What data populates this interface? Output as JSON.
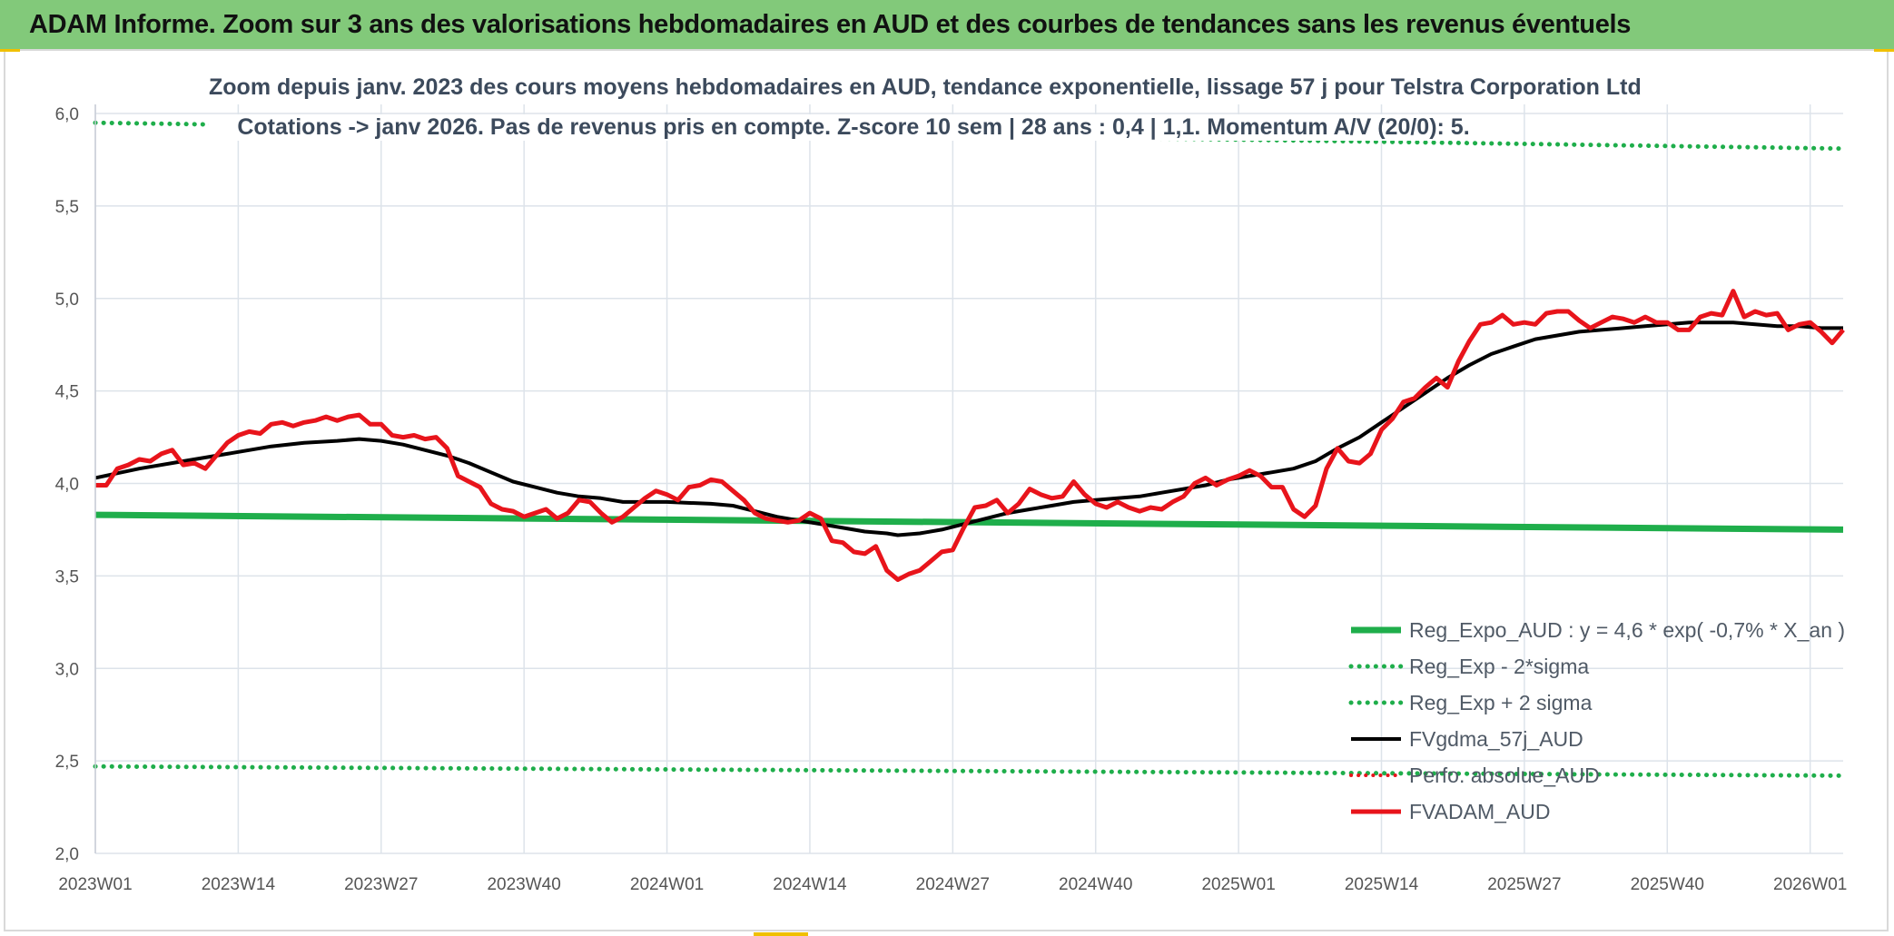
{
  "banner": {
    "title": "ADAM Informe. Zoom sur 3 ans des valorisations hebdomadaires en AUD et des courbes de tendances sans les revenus éventuels"
  },
  "colors": {
    "banner_bg": "#82c97a",
    "reg_expo": "#1fae4b",
    "sigma_bands": "#1fae4b",
    "fvgdma": "#000000",
    "fvadam": "#e8141b",
    "perfo": "#e8141b",
    "grid": "#dde3ea"
  },
  "chart_data": {
    "type": "line",
    "title": "Zoom depuis janv. 2023 des cours moyens hebdomadaires en AUD, tendance exponentielle, lissage 57 j pour Telstra Corporation Ltd",
    "subtitle": "Cotations -> janv 2026. Pas de revenus pris en compte. Z-score 10 sem | 28 ans : 0,4 | 1,1. Momentum A/V (20/0): 5.",
    "xlabel": "",
    "ylabel": "",
    "ylim": [
      2.0,
      6.0
    ],
    "y_ticks": [
      "2,0",
      "2,5",
      "3,0",
      "3,5",
      "4,0",
      "4,5",
      "5,0",
      "5,5",
      "6,0"
    ],
    "x_range_weeks": [
      0,
      159
    ],
    "x_ticks": [
      {
        "label": "2023W01",
        "week": 0
      },
      {
        "label": "2023W14",
        "week": 13
      },
      {
        "label": "2023W27",
        "week": 26
      },
      {
        "label": "2023W40",
        "week": 39
      },
      {
        "label": "2024W01",
        "week": 52
      },
      {
        "label": "2024W14",
        "week": 65
      },
      {
        "label": "2024W27",
        "week": 78
      },
      {
        "label": "2024W40",
        "week": 91
      },
      {
        "label": "2025W01",
        "week": 104
      },
      {
        "label": "2025W14",
        "week": 117
      },
      {
        "label": "2025W27",
        "week": 130
      },
      {
        "label": "2025W40",
        "week": 143
      },
      {
        "label": "2026W01",
        "week": 156
      }
    ],
    "series": [
      {
        "name": "Reg_Expo_AUD : y = 4,6 * exp( -0,7% *  X_an )",
        "key": "reg_expo",
        "style": "solid-thick",
        "points": [
          [
            0,
            3.83
          ],
          [
            40,
            3.81
          ],
          [
            80,
            3.79
          ],
          [
            120,
            3.77
          ],
          [
            159,
            3.75
          ]
        ]
      },
      {
        "name": "Reg_Exp - 2*sigma",
        "key": "reg_minus",
        "style": "dotted",
        "points": [
          [
            0,
            2.47
          ],
          [
            159,
            2.42
          ]
        ]
      },
      {
        "name": "Reg_Exp + 2 sigma",
        "key": "reg_plus",
        "style": "dotted",
        "points": [
          [
            0,
            5.95
          ],
          [
            159,
            5.81
          ]
        ]
      },
      {
        "name": "FVgdma_57j_AUD",
        "key": "fvgdma",
        "style": "solid",
        "points": [
          [
            0,
            4.03
          ],
          [
            4,
            4.08
          ],
          [
            8,
            4.12
          ],
          [
            12,
            4.16
          ],
          [
            16,
            4.2
          ],
          [
            19,
            4.22
          ],
          [
            22,
            4.23
          ],
          [
            24,
            4.24
          ],
          [
            26,
            4.23
          ],
          [
            28,
            4.21
          ],
          [
            30,
            4.18
          ],
          [
            32,
            4.15
          ],
          [
            34,
            4.11
          ],
          [
            36,
            4.06
          ],
          [
            38,
            4.01
          ],
          [
            40,
            3.98
          ],
          [
            42,
            3.95
          ],
          [
            44,
            3.93
          ],
          [
            46,
            3.92
          ],
          [
            48,
            3.9
          ],
          [
            52,
            3.9
          ],
          [
            56,
            3.89
          ],
          [
            58,
            3.88
          ],
          [
            60,
            3.85
          ],
          [
            62,
            3.82
          ],
          [
            64,
            3.8
          ],
          [
            66,
            3.78
          ],
          [
            68,
            3.76
          ],
          [
            70,
            3.74
          ],
          [
            72,
            3.73
          ],
          [
            73,
            3.72
          ],
          [
            75,
            3.73
          ],
          [
            77,
            3.75
          ],
          [
            79,
            3.78
          ],
          [
            81,
            3.81
          ],
          [
            83,
            3.84
          ],
          [
            85,
            3.86
          ],
          [
            87,
            3.88
          ],
          [
            89,
            3.9
          ],
          [
            91,
            3.91
          ],
          [
            93,
            3.92
          ],
          [
            95,
            3.93
          ],
          [
            97,
            3.95
          ],
          [
            99,
            3.97
          ],
          [
            101,
            3.99
          ],
          [
            103,
            4.02
          ],
          [
            105,
            4.04
          ],
          [
            107,
            4.06
          ],
          [
            109,
            4.08
          ],
          [
            111,
            4.12
          ],
          [
            113,
            4.19
          ],
          [
            115,
            4.25
          ],
          [
            117,
            4.33
          ],
          [
            119,
            4.41
          ],
          [
            121,
            4.49
          ],
          [
            123,
            4.57
          ],
          [
            125,
            4.64
          ],
          [
            127,
            4.7
          ],
          [
            129,
            4.74
          ],
          [
            131,
            4.78
          ],
          [
            133,
            4.8
          ],
          [
            135,
            4.82
          ],
          [
            137,
            4.83
          ],
          [
            139,
            4.84
          ],
          [
            141,
            4.85
          ],
          [
            143,
            4.86
          ],
          [
            145,
            4.87
          ],
          [
            147,
            4.87
          ],
          [
            149,
            4.87
          ],
          [
            151,
            4.86
          ],
          [
            153,
            4.85
          ],
          [
            155,
            4.85
          ],
          [
            157,
            4.84
          ],
          [
            159,
            4.84
          ]
        ]
      },
      {
        "name": "Perfo. absolue_AUD",
        "key": "perfo",
        "style": "dotted-red",
        "points": []
      },
      {
        "name": "FVADAM_AUD",
        "key": "fvadam",
        "style": "solid-thick",
        "points": [
          [
            0,
            3.99
          ],
          [
            1,
            3.99
          ],
          [
            2,
            4.08
          ],
          [
            3,
            4.1
          ],
          [
            4,
            4.13
          ],
          [
            5,
            4.12
          ],
          [
            6,
            4.16
          ],
          [
            7,
            4.18
          ],
          [
            8,
            4.1
          ],
          [
            9,
            4.11
          ],
          [
            10,
            4.08
          ],
          [
            11,
            4.15
          ],
          [
            12,
            4.22
          ],
          [
            13,
            4.26
          ],
          [
            14,
            4.28
          ],
          [
            15,
            4.27
          ],
          [
            16,
            4.32
          ],
          [
            17,
            4.33
          ],
          [
            18,
            4.31
          ],
          [
            19,
            4.33
          ],
          [
            20,
            4.34
          ],
          [
            21,
            4.36
          ],
          [
            22,
            4.34
          ],
          [
            23,
            4.36
          ],
          [
            24,
            4.37
          ],
          [
            25,
            4.32
          ],
          [
            26,
            4.32
          ],
          [
            27,
            4.26
          ],
          [
            28,
            4.25
          ],
          [
            29,
            4.26
          ],
          [
            30,
            4.24
          ],
          [
            31,
            4.25
          ],
          [
            32,
            4.19
          ],
          [
            33,
            4.04
          ],
          [
            34,
            4.01
          ],
          [
            35,
            3.98
          ],
          [
            36,
            3.89
          ],
          [
            37,
            3.86
          ],
          [
            38,
            3.85
          ],
          [
            39,
            3.82
          ],
          [
            40,
            3.84
          ],
          [
            41,
            3.86
          ],
          [
            42,
            3.81
          ],
          [
            43,
            3.84
          ],
          [
            44,
            3.91
          ],
          [
            45,
            3.9
          ],
          [
            46,
            3.84
          ],
          [
            47,
            3.79
          ],
          [
            48,
            3.82
          ],
          [
            49,
            3.87
          ],
          [
            50,
            3.92
          ],
          [
            51,
            3.96
          ],
          [
            52,
            3.94
          ],
          [
            53,
            3.91
          ],
          [
            54,
            3.98
          ],
          [
            55,
            3.99
          ],
          [
            56,
            4.02
          ],
          [
            57,
            4.01
          ],
          [
            58,
            3.96
          ],
          [
            59,
            3.91
          ],
          [
            60,
            3.84
          ],
          [
            61,
            3.81
          ],
          [
            62,
            3.8
          ],
          [
            63,
            3.79
          ],
          [
            64,
            3.8
          ],
          [
            65,
            3.84
          ],
          [
            66,
            3.81
          ],
          [
            67,
            3.69
          ],
          [
            68,
            3.68
          ],
          [
            69,
            3.63
          ],
          [
            70,
            3.62
          ],
          [
            71,
            3.66
          ],
          [
            72,
            3.53
          ],
          [
            73,
            3.48
          ],
          [
            74,
            3.51
          ],
          [
            75,
            3.53
          ],
          [
            76,
            3.58
          ],
          [
            77,
            3.63
          ],
          [
            78,
            3.64
          ],
          [
            79,
            3.76
          ],
          [
            80,
            3.87
          ],
          [
            81,
            3.88
          ],
          [
            82,
            3.91
          ],
          [
            83,
            3.84
          ],
          [
            84,
            3.89
          ],
          [
            85,
            3.97
          ],
          [
            86,
            3.94
          ],
          [
            87,
            3.92
          ],
          [
            88,
            3.93
          ],
          [
            89,
            4.01
          ],
          [
            90,
            3.94
          ],
          [
            91,
            3.89
          ],
          [
            92,
            3.87
          ],
          [
            93,
            3.9
          ],
          [
            94,
            3.87
          ],
          [
            95,
            3.85
          ],
          [
            96,
            3.87
          ],
          [
            97,
            3.86
          ],
          [
            98,
            3.9
          ],
          [
            99,
            3.93
          ],
          [
            100,
            4.0
          ],
          [
            101,
            4.03
          ],
          [
            102,
            3.99
          ],
          [
            103,
            4.02
          ],
          [
            104,
            4.04
          ],
          [
            105,
            4.07
          ],
          [
            106,
            4.04
          ],
          [
            107,
            3.98
          ],
          [
            108,
            3.98
          ],
          [
            109,
            3.86
          ],
          [
            110,
            3.82
          ],
          [
            111,
            3.88
          ],
          [
            112,
            4.08
          ],
          [
            113,
            4.19
          ],
          [
            114,
            4.12
          ],
          [
            115,
            4.11
          ],
          [
            116,
            4.16
          ],
          [
            117,
            4.29
          ],
          [
            118,
            4.35
          ],
          [
            119,
            4.44
          ],
          [
            120,
            4.46
          ],
          [
            121,
            4.52
          ],
          [
            122,
            4.57
          ],
          [
            123,
            4.52
          ],
          [
            124,
            4.66
          ],
          [
            125,
            4.77
          ],
          [
            126,
            4.86
          ],
          [
            127,
            4.87
          ],
          [
            128,
            4.91
          ],
          [
            129,
            4.86
          ],
          [
            130,
            4.87
          ],
          [
            131,
            4.86
          ],
          [
            132,
            4.92
          ],
          [
            133,
            4.93
          ],
          [
            134,
            4.93
          ],
          [
            135,
            4.88
          ],
          [
            136,
            4.84
          ],
          [
            137,
            4.87
          ],
          [
            138,
            4.9
          ],
          [
            139,
            4.89
          ],
          [
            140,
            4.87
          ],
          [
            141,
            4.9
          ],
          [
            142,
            4.87
          ],
          [
            143,
            4.87
          ],
          [
            144,
            4.83
          ],
          [
            145,
            4.83
          ],
          [
            146,
            4.9
          ],
          [
            147,
            4.92
          ],
          [
            148,
            4.91
          ],
          [
            149,
            5.04
          ],
          [
            150,
            4.9
          ],
          [
            151,
            4.93
          ],
          [
            152,
            4.91
          ],
          [
            153,
            4.92
          ],
          [
            154,
            4.83
          ],
          [
            155,
            4.86
          ],
          [
            156,
            4.87
          ],
          [
            157,
            4.82
          ],
          [
            158,
            4.76
          ],
          [
            159,
            4.83
          ]
        ]
      }
    ]
  }
}
